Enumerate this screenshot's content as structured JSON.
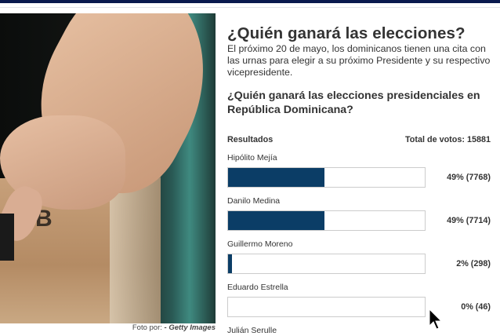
{
  "photo": {
    "caption_prefix": "Foto por:",
    "caption_credit": "- Getty Images",
    "box_letter": "B"
  },
  "poll": {
    "title": "¿Quién ganará las elecciones?",
    "intro": "El próximo 20 de mayo, los dominicanos tienen una cita con las urnas para elegir a su próximo Presidente y su respectivo vicepresidente.",
    "question": "¿Quién ganará las elecciones presidenciales en República Dominicana?",
    "results_label": "Resultados",
    "total_label": "Total de votos: 15881",
    "bar_color": "#0b3d66",
    "options": [
      {
        "name": "Hipólito Mejía",
        "percent": 49,
        "label": "49% (7768)"
      },
      {
        "name": "Danilo Medina",
        "percent": 49,
        "label": "49% (7714)"
      },
      {
        "name": "Guillermo Moreno",
        "percent": 2,
        "label": "2% (298)"
      },
      {
        "name": "Eduardo Estrella",
        "percent": 0,
        "label": "0% (46)"
      },
      {
        "name": "Julián Serulle"
      }
    ]
  }
}
